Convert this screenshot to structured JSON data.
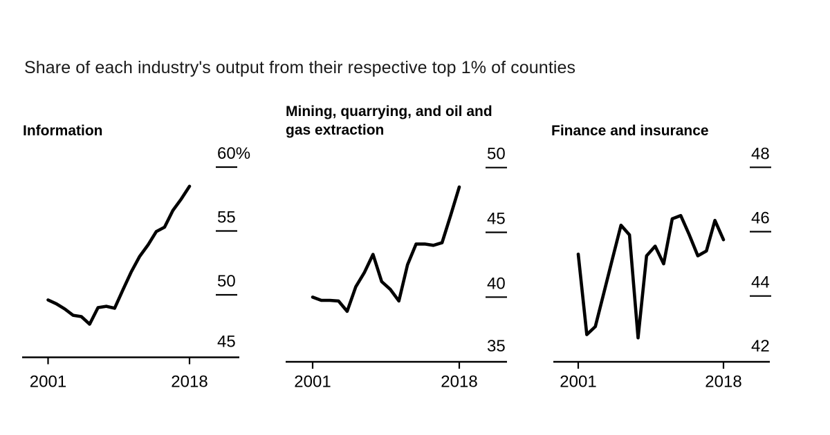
{
  "page_title": "Share of each industry's output from their respective top 1% of counties",
  "colors": {
    "line": "#000000",
    "axis": "#000000",
    "title_text": "#1a1a1a",
    "background": "#ffffff"
  },
  "chart_data": [
    {
      "id": "information",
      "type": "line",
      "title": "Information",
      "x": [
        2001,
        2002,
        2003,
        2004,
        2005,
        2006,
        2007,
        2008,
        2009,
        2010,
        2011,
        2012,
        2013,
        2014,
        2015,
        2016,
        2017,
        2018
      ],
      "values": [
        49.6,
        49.3,
        48.9,
        48.4,
        48.3,
        47.7,
        49.0,
        49.1,
        48.95,
        50.4,
        51.8,
        53.0,
        53.9,
        54.95,
        55.3,
        56.6,
        57.5,
        58.5
      ],
      "ylim": [
        45,
        61
      ],
      "yticks": [
        {
          "value": 60,
          "label": "60%"
        },
        {
          "value": 55,
          "label": "55"
        },
        {
          "value": 50,
          "label": "50"
        },
        {
          "value": 45,
          "label": "45"
        }
      ],
      "xticks": [
        {
          "value": 2001,
          "label": "2001"
        },
        {
          "value": 2018,
          "label": "2018"
        }
      ],
      "grid": false,
      "legend": "none",
      "line_color": "#000000"
    },
    {
      "id": "mining",
      "type": "line",
      "title": "Mining, quarrying, and oil and gas extraction",
      "x": [
        2001,
        2002,
        2003,
        2004,
        2005,
        2006,
        2007,
        2008,
        2009,
        2010,
        2011,
        2012,
        2013,
        2014,
        2015,
        2016,
        2017,
        2018
      ],
      "values": [
        40.0,
        39.75,
        39.75,
        39.7,
        38.9,
        40.8,
        41.9,
        43.3,
        41.2,
        40.6,
        39.7,
        42.5,
        44.1,
        44.1,
        44.0,
        44.2,
        46.3,
        48.5
      ],
      "ylim": [
        35,
        51
      ],
      "yticks": [
        {
          "value": 50,
          "label": "50"
        },
        {
          "value": 45,
          "label": "45"
        },
        {
          "value": 40,
          "label": "40"
        },
        {
          "value": 35,
          "label": "35"
        }
      ],
      "xticks": [
        {
          "value": 2001,
          "label": "2001"
        },
        {
          "value": 2018,
          "label": "2018"
        }
      ],
      "grid": false,
      "legend": "none",
      "line_color": "#000000"
    },
    {
      "id": "finance",
      "type": "line",
      "title": "Finance and insurance",
      "x": [
        2001,
        2002,
        2003,
        2004,
        2005,
        2006,
        2007,
        2008,
        2009,
        2010,
        2011,
        2012,
        2013,
        2014,
        2015,
        2016,
        2017,
        2018
      ],
      "values": [
        45.3,
        42.8,
        43.05,
        44.1,
        45.15,
        46.2,
        45.9,
        42.7,
        45.25,
        45.55,
        45.0,
        46.4,
        46.5,
        45.9,
        45.25,
        45.4,
        46.35,
        45.75
      ],
      "ylim": [
        42,
        48.4
      ],
      "yticks": [
        {
          "value": 48,
          "label": "48"
        },
        {
          "value": 46,
          "label": "46"
        },
        {
          "value": 44,
          "label": "44"
        },
        {
          "value": 42,
          "label": "42"
        }
      ],
      "xticks": [
        {
          "value": 2001,
          "label": "2001"
        },
        {
          "value": 2018,
          "label": "2018"
        }
      ],
      "grid": false,
      "legend": "none",
      "line_color": "#000000"
    }
  ]
}
